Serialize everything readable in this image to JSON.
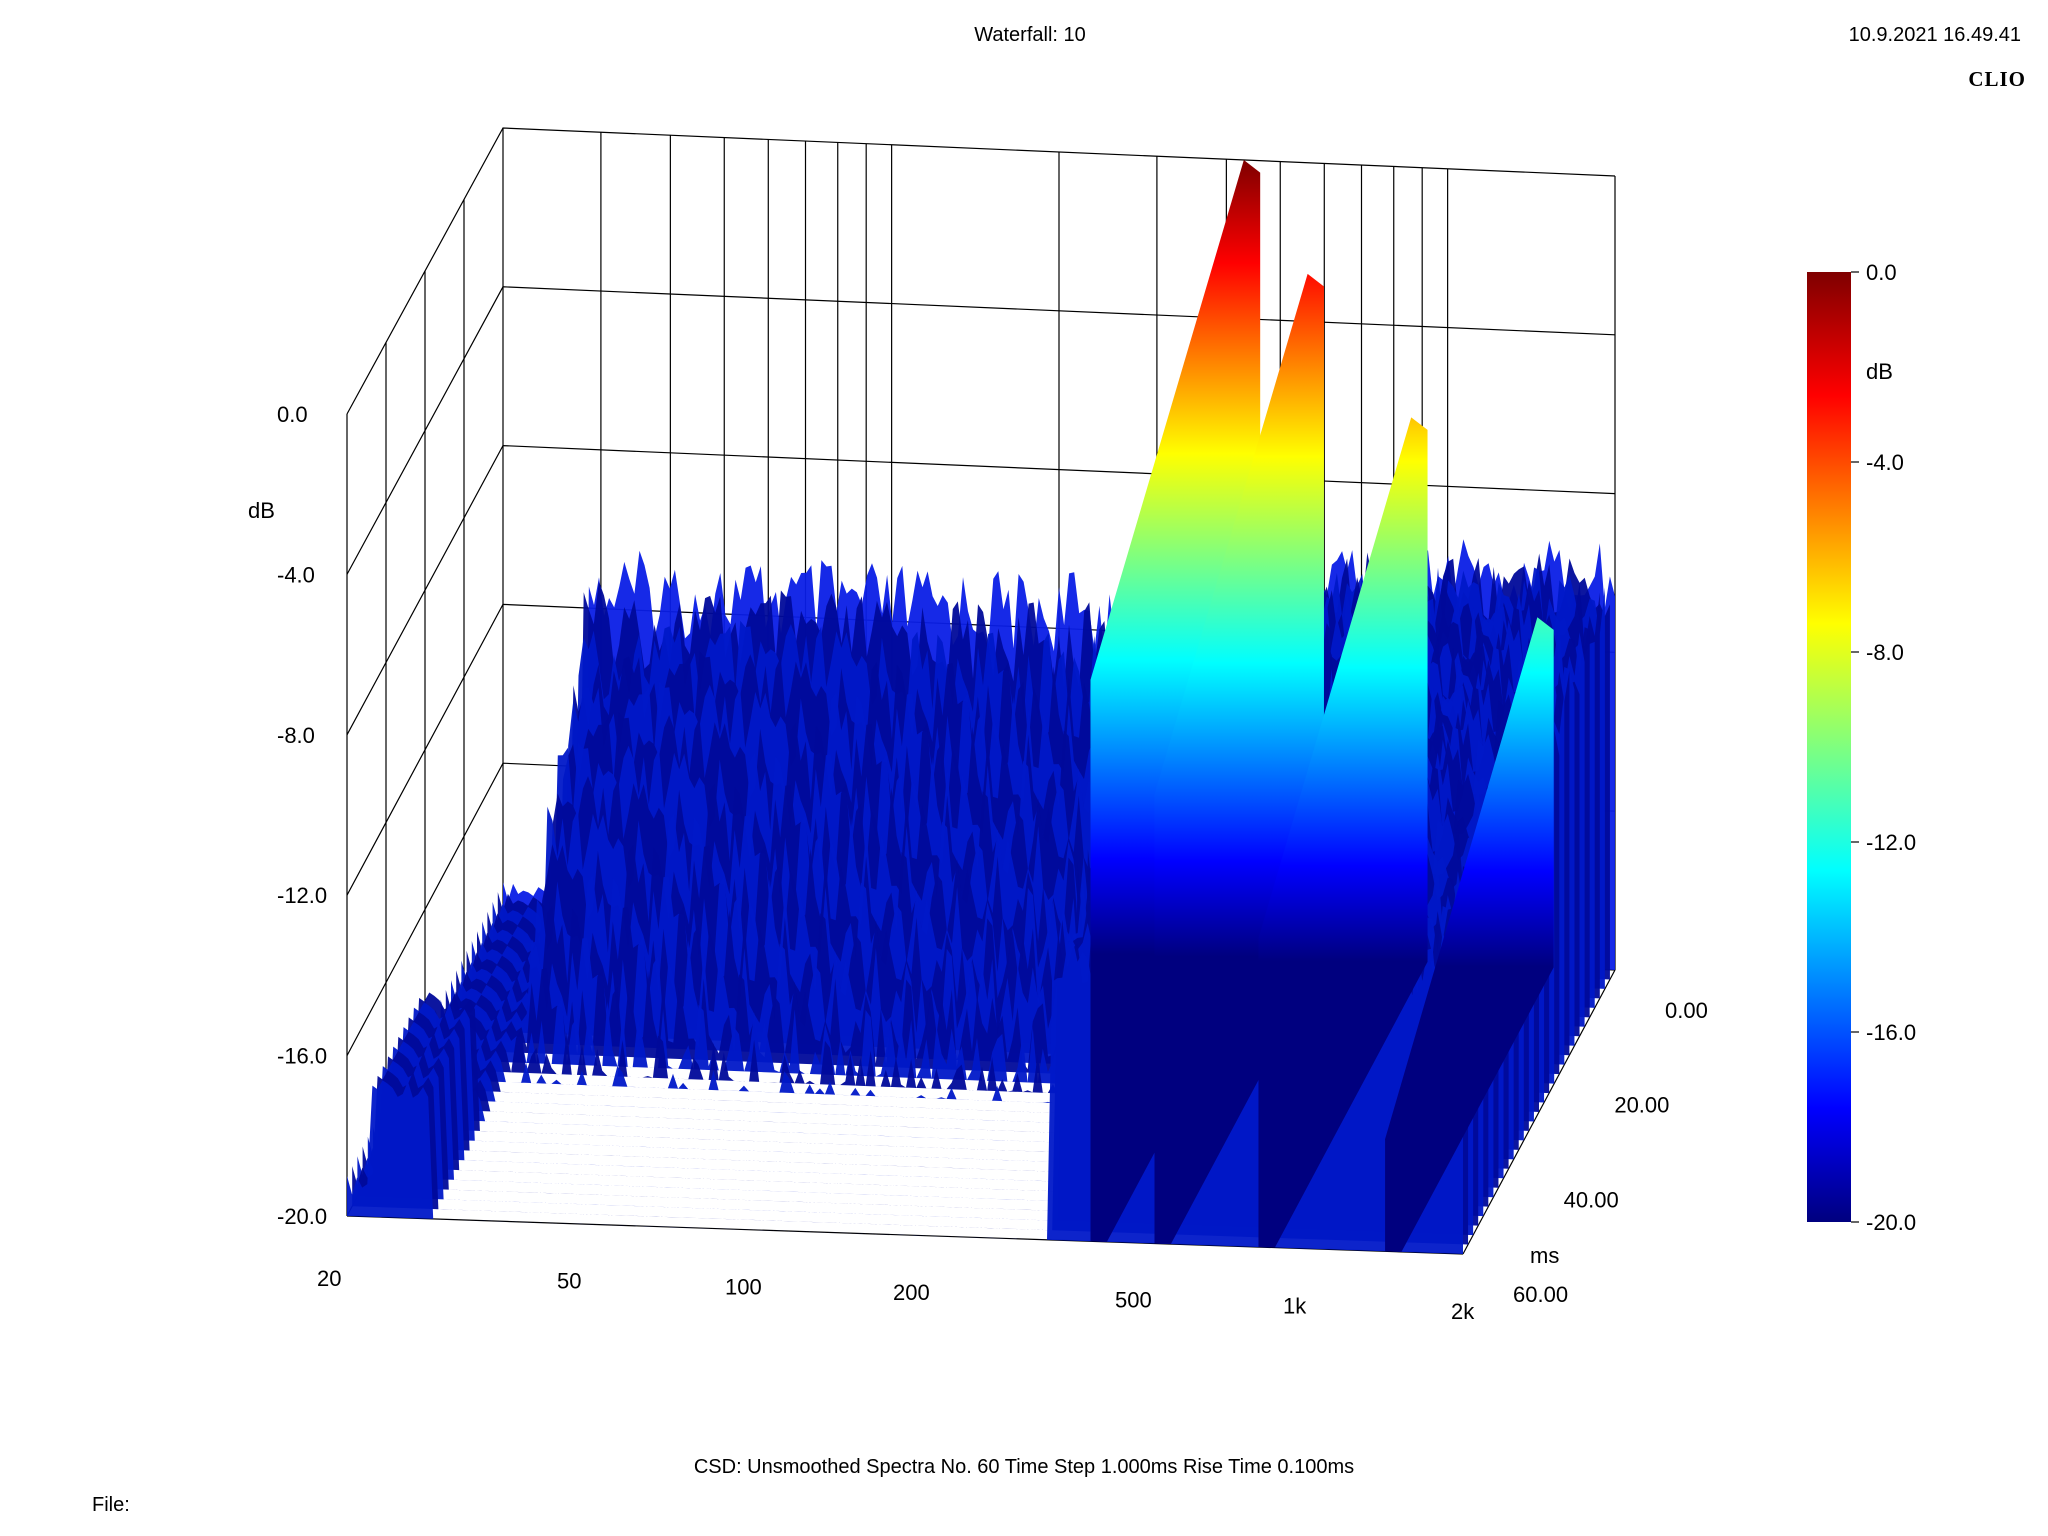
{
  "header": {
    "title": "Waterfall: 10",
    "timestamp": "10.9.2021 16.49.41",
    "brand": "CLIO"
  },
  "footer": {
    "status": "CSD:   Unsmoothed   Spectra No. 60   Time Step 1.000ms   Rise Time 0.100ms",
    "file_label": "File:"
  },
  "chart_data": {
    "type": "waterfall",
    "title": "Waterfall: 10",
    "x_axis": {
      "scale": "log",
      "range": [
        20,
        2000
      ],
      "ticks": [
        20,
        50,
        100,
        200,
        500,
        1000,
        2000
      ],
      "tick_labels": [
        "20",
        "50",
        "100",
        "200",
        "500",
        "1k",
        "2k"
      ]
    },
    "y_axis": {
      "label": "dB",
      "range": [
        -20,
        0
      ],
      "ticks": [
        0,
        -4,
        -8,
        -12,
        -16,
        -20
      ],
      "tick_labels": [
        "0.0",
        "-4.0",
        "-8.0",
        "-12.0",
        "-16.0",
        "-20.0"
      ]
    },
    "z_axis": {
      "label": "ms",
      "range": [
        0,
        60
      ],
      "ticks": [
        0,
        20,
        40,
        60
      ],
      "tick_labels": [
        "0.00",
        "20.00",
        "40.00",
        "60.00"
      ]
    },
    "colorbar": {
      "label": "dB",
      "range": [
        -20,
        0
      ],
      "tick_labels": [
        "0.0",
        "-4.0",
        "-8.0",
        "-12.0",
        "-16.0",
        "-20.0"
      ],
      "colormap": [
        "#00007f",
        "#0000ff",
        "#00ffff",
        "#ffff00",
        "#ff0000",
        "#7f0000"
      ]
    },
    "resonant_ridges": [
      {
        "freq_hz": 430,
        "peak_db": 0.0,
        "decay_ms": 60
      },
      {
        "freq_hz": 560,
        "peak_db": -2.8,
        "decay_ms": 60
      },
      {
        "freq_hz": 860,
        "peak_db": -6.3,
        "decay_ms": 60
      },
      {
        "freq_hz": 1450,
        "peak_db": -11.2,
        "decay_ms": 60
      }
    ],
    "spectra_count": 60,
    "time_step_ms": 1.0,
    "rise_time_ms": 0.1,
    "smoothing": "Unsmoothed"
  }
}
